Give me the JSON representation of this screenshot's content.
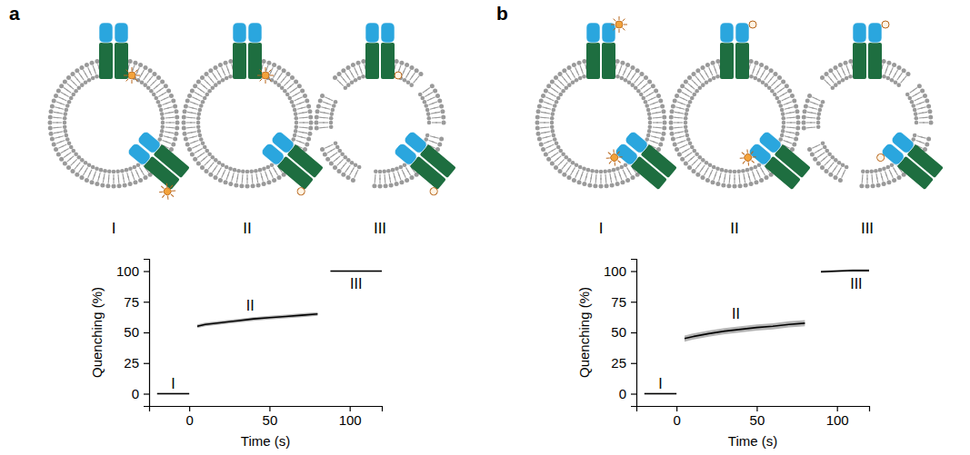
{
  "chart_data": [
    {
      "type": "line",
      "title": "a",
      "x_label": "Time (s)",
      "y_label": "Quenching (%)",
      "xlim": [
        -25,
        120
      ],
      "ylim": [
        -10,
        110
      ],
      "xticks": [
        0,
        50,
        100
      ],
      "yticks": [
        0,
        25,
        50,
        75,
        100
      ],
      "grid": false,
      "diagram_labels": [
        "I",
        "II",
        "III"
      ],
      "series": [
        {
          "x": [
            -20,
            -10,
            0
          ],
          "values": [
            0,
            0,
            0
          ],
          "error": [
            0.5,
            0.5,
            0.5
          ],
          "color": "#000000"
        },
        {
          "x": [
            5,
            10,
            20,
            30,
            40,
            50,
            60,
            70,
            80
          ],
          "values": [
            55,
            56.5,
            58,
            59.5,
            61,
            62,
            63,
            64,
            65
          ],
          "error": [
            1.5,
            1.5,
            1.5,
            1.5,
            1.5,
            1.5,
            1.5,
            1.5,
            1.5
          ],
          "color": "#000000"
        },
        {
          "x": [
            88,
            100,
            110,
            120
          ],
          "values": [
            100,
            100,
            100,
            100
          ],
          "error": [
            0.5,
            0.5,
            0.5,
            0.5
          ],
          "color": "#000000"
        }
      ],
      "annotations": [
        {
          "text": "I",
          "x": -10,
          "y": 8
        },
        {
          "text": "II",
          "x": 38,
          "y": 72
        },
        {
          "text": "III",
          "x": 104,
          "y": 90
        }
      ]
    },
    {
      "type": "line",
      "title": "b",
      "x_label": "Time (s)",
      "y_label": "Quenching (%)",
      "xlim": [
        -25,
        120
      ],
      "ylim": [
        -10,
        110
      ],
      "xticks": [
        0,
        50,
        100
      ],
      "yticks": [
        0,
        25,
        50,
        75,
        100
      ],
      "grid": false,
      "diagram_labels": [
        "I",
        "II",
        "III"
      ],
      "series": [
        {
          "x": [
            -20,
            -10,
            0
          ],
          "values": [
            0,
            0,
            0
          ],
          "error": [
            0.5,
            0.5,
            0.5
          ],
          "color": "#000000"
        },
        {
          "x": [
            5,
            10,
            20,
            30,
            40,
            50,
            60,
            70,
            80
          ],
          "values": [
            45,
            46.5,
            49,
            51,
            52.5,
            54,
            55,
            56.5,
            57.5
          ],
          "error": [
            2.5,
            2.5,
            2.5,
            2.5,
            2.5,
            2.5,
            2.5,
            2.5,
            2.5
          ],
          "color": "#000000"
        },
        {
          "x": [
            90,
            100,
            110,
            120
          ],
          "values": [
            99.5,
            100,
            100.5,
            100.5
          ],
          "error": [
            1,
            1,
            1,
            1
          ],
          "color": "#000000"
        }
      ],
      "annotations": [
        {
          "text": "I",
          "x": -10,
          "y": 8
        },
        {
          "text": "II",
          "x": 37,
          "y": 65
        },
        {
          "text": "III",
          "x": 112,
          "y": 90
        }
      ]
    }
  ]
}
